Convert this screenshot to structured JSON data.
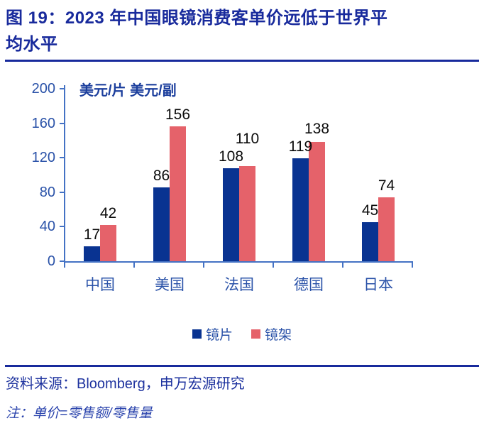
{
  "title": "图 19：2023 年中国眼镜消费客单价远低于世界平均水平",
  "colors": {
    "navy": "#182a9c",
    "unit_label": "#1c3f9d",
    "tick_label": "#2a52a8",
    "axis_line": "#4472c4",
    "lenses_bar": "#093391",
    "frames_bar": "#e5626a",
    "source_text": "#1e339f",
    "note_text": "#2b44ad"
  },
  "chart_data": {
    "type": "bar",
    "title": "图 19：2023 年中国眼镜消费客单价远低于世界平均水平",
    "unit_label": "美元/片 美元/副",
    "categories": [
      "中国",
      "美国",
      "法国",
      "德国",
      "日本"
    ],
    "series": [
      {
        "name": "镜片",
        "color": "#093391",
        "values": [
          17,
          86,
          108,
          119,
          45
        ]
      },
      {
        "name": "镜架",
        "color": "#e5626a",
        "values": [
          42,
          156,
          110,
          138,
          74
        ]
      }
    ],
    "ylim": [
      0,
      200
    ],
    "y_ticks": [
      0,
      40,
      80,
      120,
      160,
      200
    ],
    "grid": false,
    "legend_position": "bottom",
    "data_labels": true
  },
  "footer": {
    "source": "资料来源：Bloomberg，申万宏源研究",
    "note": "注：单价=零售额/零售量"
  }
}
